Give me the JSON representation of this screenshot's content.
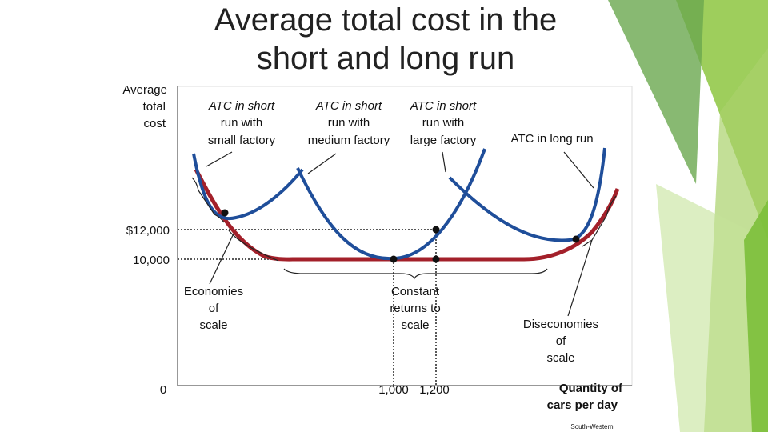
{
  "title": [
    "Average total cost in the",
    "short and long run"
  ],
  "y_axis_label": [
    "Average",
    "total",
    "cost"
  ],
  "x_axis_label": [
    "Quantity of",
    "cars per day"
  ],
  "curve_labels": {
    "small": [
      "ATC in short",
      "run with",
      "small factory"
    ],
    "medium": [
      "ATC in short",
      "run with",
      "medium factory"
    ],
    "large": [
      "ATC in short",
      "run with",
      "large factory"
    ],
    "long_run": "ATC in long run"
  },
  "y_labels": [
    "$12,000",
    "10,000"
  ],
  "x_labels": [
    "0",
    "1,000",
    "1,200"
  ],
  "regions": {
    "economies": [
      "Economies",
      "of",
      "scale"
    ],
    "constant": [
      "Constant",
      "returns to",
      "scale"
    ],
    "diseconomies": [
      "Diseconomies",
      "of",
      "scale"
    ]
  },
  "credit": "South-Western"
}
